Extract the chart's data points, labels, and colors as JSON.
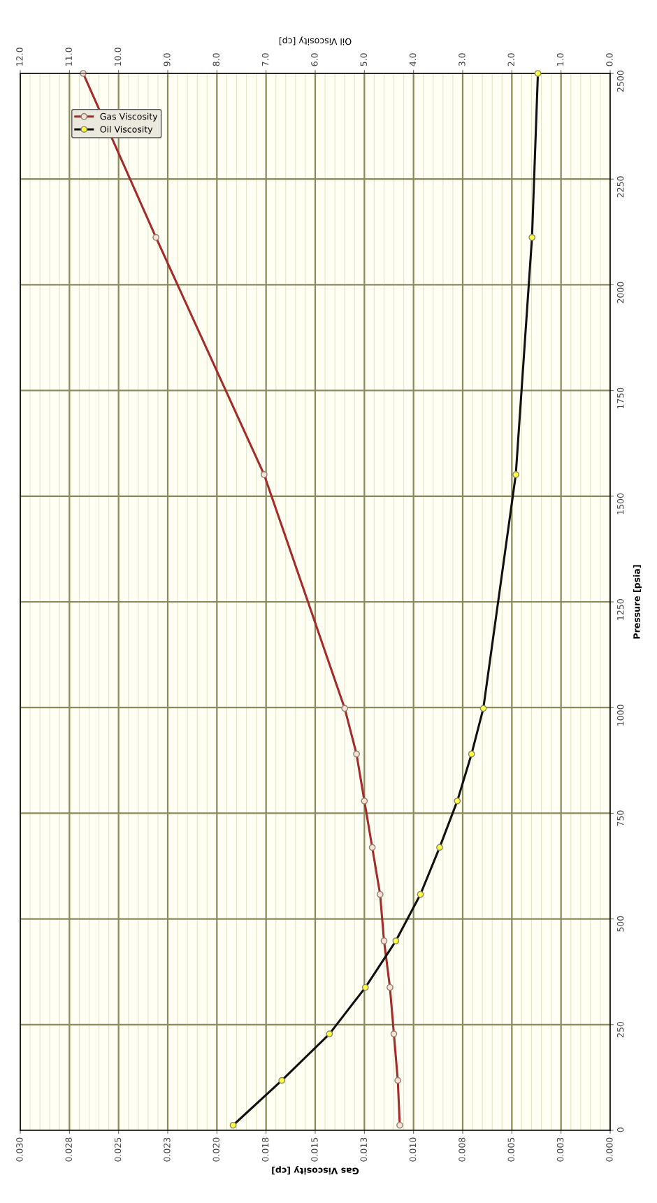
{
  "chart_data": {
    "type": "line",
    "xlabel": "Gas Viscosity [cp]",
    "x2label": "Oil Viscosity [cp]",
    "ylabel": "Pressure [psia]",
    "series": [
      {
        "name": "Gas Viscosity",
        "color": "#a52a2a",
        "x": [
          0.0107,
          0.0108,
          0.011,
          0.0112,
          0.0115,
          0.0117,
          0.0121,
          0.0125,
          0.0129,
          0.0135,
          0.0176,
          0.0231,
          0.0268
        ],
        "values": [
          12,
          118,
          228,
          338,
          448,
          558,
          669,
          779,
          890,
          998,
          1551,
          2112,
          2500
        ]
      },
      {
        "name": "Oil Viscosity",
        "color": "#111111",
        "axis": "x2",
        "x": [
          7.67,
          6.68,
          5.71,
          4.98,
          4.36,
          3.86,
          3.47,
          3.11,
          2.82,
          2.58,
          1.92,
          1.59,
          1.47
        ],
        "values": [
          12,
          118,
          228,
          338,
          448,
          558,
          669,
          779,
          890,
          998,
          1551,
          2112,
          2500
        ]
      }
    ],
    "ylim": [
      0,
      2500
    ],
    "yticks": [
      0,
      250,
      500,
      750,
      1000,
      1250,
      1500,
      1750,
      2000,
      2250,
      2500
    ],
    "xlim": [
      0.03,
      0
    ],
    "xticks": [
      {
        "value": 0,
        "label": "0.000"
      },
      {
        "value": 0.0025,
        "label": "0.003"
      },
      {
        "value": 0.005,
        "label": "0.005"
      },
      {
        "value": 0.0075,
        "label": "0.008"
      },
      {
        "value": 0.01,
        "label": "0.010"
      },
      {
        "value": 0.0125,
        "label": "0.013"
      },
      {
        "value": 0.015,
        "label": "0.015"
      },
      {
        "value": 0.0175,
        "label": "0.018"
      },
      {
        "value": 0.02,
        "label": "0.020"
      },
      {
        "value": 0.0225,
        "label": "0.023"
      },
      {
        "value": 0.025,
        "label": "0.025"
      },
      {
        "value": 0.0275,
        "label": "0.028"
      },
      {
        "value": 0.03,
        "label": "0.030"
      }
    ],
    "x2lim": [
      12,
      0
    ],
    "x2ticks": [
      {
        "value": 0,
        "label": "0.0"
      },
      {
        "value": 1,
        "label": "1.0"
      },
      {
        "value": 2,
        "label": "2.0"
      },
      {
        "value": 3,
        "label": "3.0"
      },
      {
        "value": 4,
        "label": "4.0"
      },
      {
        "value": 5,
        "label": "5.0"
      },
      {
        "value": 6,
        "label": "6.0"
      },
      {
        "value": 7,
        "label": "7.0"
      },
      {
        "value": 8,
        "label": "8.0"
      },
      {
        "value": 9,
        "label": "9.0"
      },
      {
        "value": 10,
        "label": "10.0"
      },
      {
        "value": 11,
        "label": "11.0"
      },
      {
        "value": 12,
        "label": "12.0"
      }
    ],
    "grid": true,
    "legend": "top left",
    "marker": "circle",
    "line_style": "solid"
  }
}
